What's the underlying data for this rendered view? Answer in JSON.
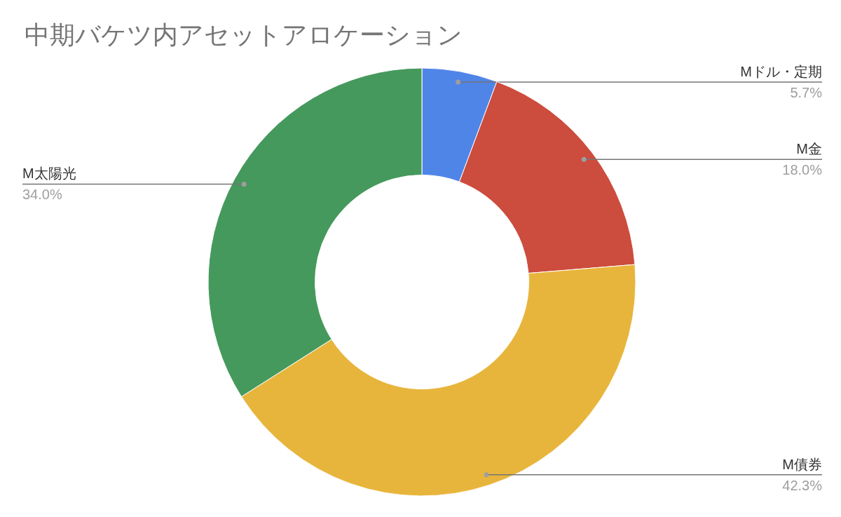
{
  "chart_data": {
    "type": "donut",
    "title": "中期バケツ内アセットアロケーション",
    "categories": [
      "Mドル・定期",
      "M金",
      "M債券",
      "M太陽光"
    ],
    "values": [
      5.7,
      18.0,
      42.3,
      34.0
    ],
    "value_labels": [
      "5.7%",
      "18.0%",
      "42.3%",
      "34.0%"
    ],
    "colors": [
      "#5085e8",
      "#cc4c3d",
      "#e8b53c",
      "#45995c"
    ]
  }
}
